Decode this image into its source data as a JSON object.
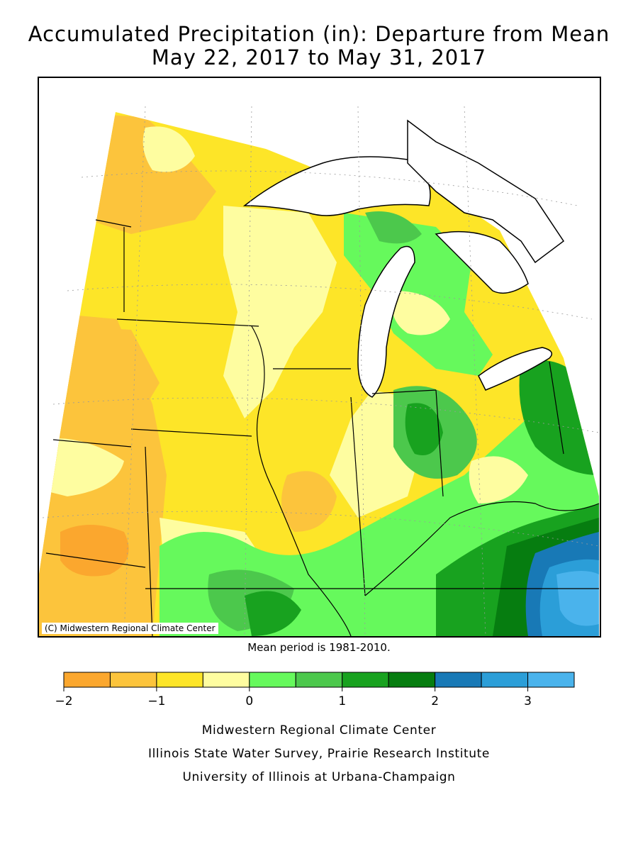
{
  "title": {
    "line1": "Accumulated Precipitation (in): Departure from Mean",
    "line2": "May 22, 2017 to May 31, 2017"
  },
  "map": {
    "copyright": "(C) Midwestern Regional Climate Center",
    "water_color": "#ffffff",
    "boundary_color": "#000000"
  },
  "mean_period": "Mean period is 1981-2010.",
  "legend": {
    "bins": [
      {
        "from": -2.0,
        "to": -1.5,
        "color": "#fba72e"
      },
      {
        "from": -1.5,
        "to": -1.0,
        "color": "#fcc43c"
      },
      {
        "from": -1.0,
        "to": -0.5,
        "color": "#fde528"
      },
      {
        "from": -0.5,
        "to": 0.0,
        "color": "#fefda0"
      },
      {
        "from": 0.0,
        "to": 0.5,
        "color": "#66f95c"
      },
      {
        "from": 0.5,
        "to": 1.0,
        "color": "#4cc84c"
      },
      {
        "from": 1.0,
        "to": 1.5,
        "color": "#18a21f"
      },
      {
        "from": 1.5,
        "to": 2.0,
        "color": "#067d10"
      },
      {
        "from": 2.0,
        "to": 2.5,
        "color": "#1879b6"
      },
      {
        "from": 2.5,
        "to": 3.0,
        "color": "#2b9ed8"
      },
      {
        "from": 3.0,
        "to": 3.5,
        "color": "#4ab3ec"
      }
    ],
    "tick_labels": [
      "−2",
      "−1",
      "0",
      "1",
      "2",
      "3"
    ],
    "tick_values": [
      -2,
      -1,
      0,
      1,
      2,
      3
    ]
  },
  "footer": {
    "line1": "Midwestern Regional Climate Center",
    "line2": "Illinois State Water Survey, Prairie Research Institute",
    "line3": "University of Illinois at Urbana-Champaign"
  }
}
